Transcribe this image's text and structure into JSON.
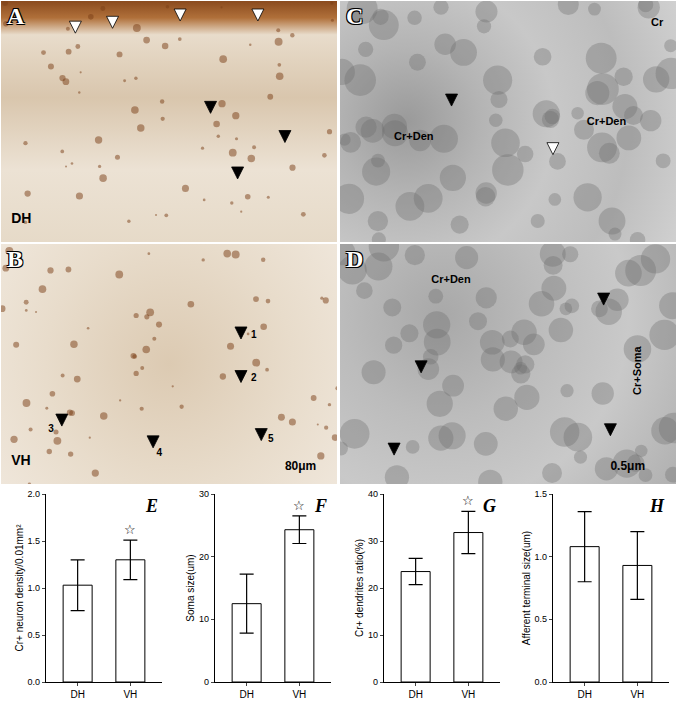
{
  "panels": [
    {
      "label": "A",
      "texts": [
        "DH"
      ]
    },
    {
      "label": "B",
      "texts": [
        "VH",
        "1",
        "2",
        "3",
        "4",
        "5",
        "80μm"
      ]
    },
    {
      "label": "C",
      "texts": [
        "Cr",
        "Cr+Den",
        "Cr+Den"
      ]
    },
    {
      "label": "D",
      "texts": [
        "Cr+Den",
        "Cr+Soma",
        "0.5μm"
      ]
    }
  ],
  "chart_data": [
    {
      "type": "bar",
      "title": "E",
      "ylabel": "Cr+ neuron density/0.01mm²",
      "categories": [
        "DH",
        "VH"
      ],
      "values": [
        1.03,
        1.3
      ],
      "errors": [
        0.27,
        0.21
      ],
      "colors": [
        "#ffffff",
        "#ffffff"
      ],
      "ylim": [
        0,
        2.0
      ],
      "yticks": [
        {
          "value": 0,
          "label": "0.0"
        },
        {
          "value": 0.5,
          "label": "0.5"
        },
        {
          "value": 1.0,
          "label": "1.0"
        },
        {
          "value": 1.5,
          "label": "1.5"
        },
        {
          "value": 2.0,
          "label": "2.0"
        }
      ],
      "annotations": [
        {
          "category": "VH",
          "text": "☆"
        }
      ],
      "grid": false
    },
    {
      "type": "bar",
      "title": "F",
      "ylabel": "Soma size(um)",
      "categories": [
        "DH",
        "VH"
      ],
      "values": [
        12.5,
        24.3
      ],
      "errors": [
        4.7,
        2.2
      ],
      "colors": [
        "#ffffff",
        "#ffffff"
      ],
      "ylim": [
        0,
        30
      ],
      "yticks": [
        0,
        10,
        20,
        30
      ],
      "annotations": [
        {
          "category": "VH",
          "text": "☆"
        }
      ],
      "grid": false
    },
    {
      "type": "bar",
      "title": "G",
      "ylabel": "Cr+ dendrites ratio(%)",
      "categories": [
        "DH",
        "VH"
      ],
      "values": [
        23.5,
        31.8
      ],
      "errors": [
        2.8,
        4.5
      ],
      "colors": [
        "#ffffff",
        "#ffffff"
      ],
      "ylim": [
        0,
        40
      ],
      "yticks": [
        0,
        10,
        20,
        30,
        40
      ],
      "annotations": [
        {
          "category": "VH",
          "text": "☆"
        }
      ],
      "grid": false
    },
    {
      "type": "bar",
      "title": "H",
      "ylabel": "Afferent terminal size(um)",
      "categories": [
        "DH",
        "VH"
      ],
      "values": [
        1.08,
        0.93
      ],
      "errors": [
        0.28,
        0.27
      ],
      "colors": [
        "#ffffff",
        "#ffffff"
      ],
      "ylim": [
        0,
        1.5
      ],
      "yticks": [
        {
          "value": 0,
          "label": "0.0"
        },
        {
          "value": 0.5,
          "label": "0.5"
        },
        {
          "value": 1.0,
          "label": "1.0"
        },
        {
          "value": 1.5,
          "label": "1.5"
        }
      ],
      "grid": false
    }
  ]
}
